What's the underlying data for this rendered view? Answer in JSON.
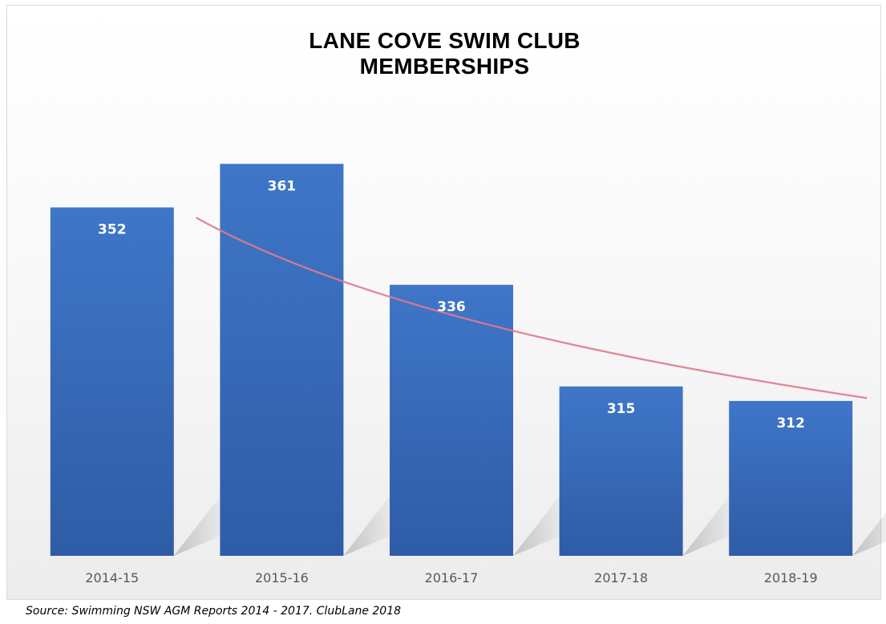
{
  "chart_data": {
    "type": "bar",
    "title_lines": [
      "LANE COVE SWIM CLUB",
      "MEMBERSHIPS"
    ],
    "categories": [
      "2014-15",
      "2015-16",
      "2016-17",
      "2017-18",
      "2018-19"
    ],
    "values": [
      352,
      361,
      336,
      315,
      312
    ],
    "data_labels": [
      "352",
      "361",
      "336",
      "315",
      "312"
    ],
    "xlabel": "",
    "ylabel": "",
    "ylim": [
      280,
      370
    ],
    "grid": false,
    "legend": "none",
    "trendline": "logarithmic",
    "colors": {
      "bar": "#3d72c4",
      "bar_dark": "#2f5da8",
      "trend": "#e07a8c",
      "label": "#ffffff",
      "tick": "#595959"
    }
  },
  "source_note": "Source: Swimming NSW AGM Reports 2014 - 2017. ClubLane 2018"
}
